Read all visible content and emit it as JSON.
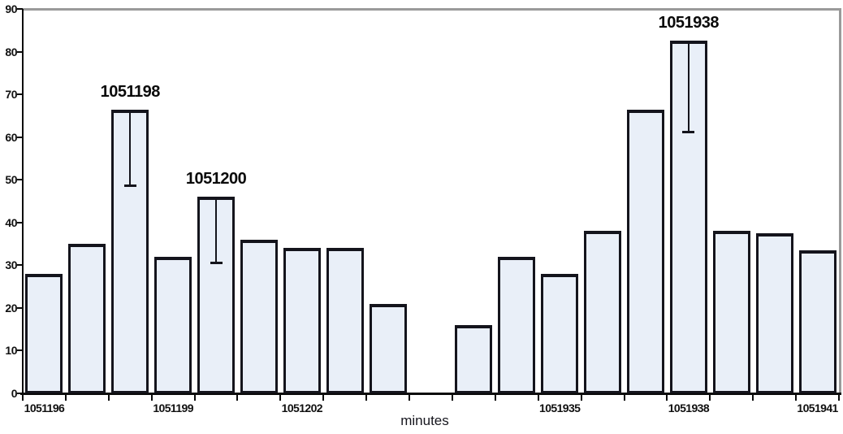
{
  "chart_data": {
    "type": "bar",
    "title": "",
    "xlabel": "minutes",
    "ylabel": "",
    "ylim": [
      0,
      90
    ],
    "yticks": [
      0,
      10,
      20,
      30,
      40,
      50,
      60,
      70,
      80,
      90
    ],
    "grid": false,
    "legend": false,
    "total_slots": 19,
    "gap_slots": [
      9
    ],
    "bars": [
      {
        "minute": "1051196",
        "value": 28,
        "slot": 0
      },
      {
        "minute": "1051197",
        "value": 35,
        "slot": 1
      },
      {
        "minute": "1051198",
        "value": 66.5,
        "slot": 2
      },
      {
        "minute": "1051199",
        "value": 32,
        "slot": 3
      },
      {
        "minute": "1051200",
        "value": 46,
        "slot": 4
      },
      {
        "minute": "1051201",
        "value": 36,
        "slot": 5
      },
      {
        "minute": "1051202",
        "value": 34,
        "slot": 6
      },
      {
        "minute": "1051203",
        "value": 34,
        "slot": 7
      },
      {
        "minute": "1051204",
        "value": 21,
        "slot": 8
      },
      {
        "minute": "1051933",
        "value": 16,
        "slot": 10
      },
      {
        "minute": "1051934",
        "value": 32,
        "slot": 11
      },
      {
        "minute": "1051935",
        "value": 28,
        "slot": 12
      },
      {
        "minute": "1051936",
        "value": 38,
        "slot": 13
      },
      {
        "minute": "1051937",
        "value": 66.5,
        "slot": 14
      },
      {
        "minute": "1051938",
        "value": 82.5,
        "slot": 15
      },
      {
        "minute": "1051939",
        "value": 38,
        "slot": 16
      },
      {
        "minute": "1051940",
        "value": 37.5,
        "slot": 17
      },
      {
        "minute": "1051941",
        "value": 33.5,
        "slot": 18
      }
    ],
    "xtick_labels": [
      {
        "text": "1051196",
        "slot": 0
      },
      {
        "text": "1051199",
        "slot": 3
      },
      {
        "text": "1051202",
        "slot": 6
      },
      {
        "text": "1051935",
        "slot": 12
      },
      {
        "text": "1051938",
        "slot": 15
      },
      {
        "text": "1051941",
        "slot": 18
      }
    ],
    "annotations": [
      {
        "text": "1051198",
        "slot": 2,
        "bar_value": 66.5,
        "error_low": 48.5
      },
      {
        "text": "1051200",
        "slot": 4,
        "bar_value": 46,
        "error_low": 30.5
      },
      {
        "text": "1051938",
        "slot": 15,
        "bar_value": 82.5,
        "error_low": 61
      }
    ],
    "colors": {
      "bar_fill": "#e9eff8",
      "bar_border": "#14141c",
      "axis": "#0a0a0a",
      "frame": "#9a9a9a",
      "text": "#101010"
    }
  }
}
